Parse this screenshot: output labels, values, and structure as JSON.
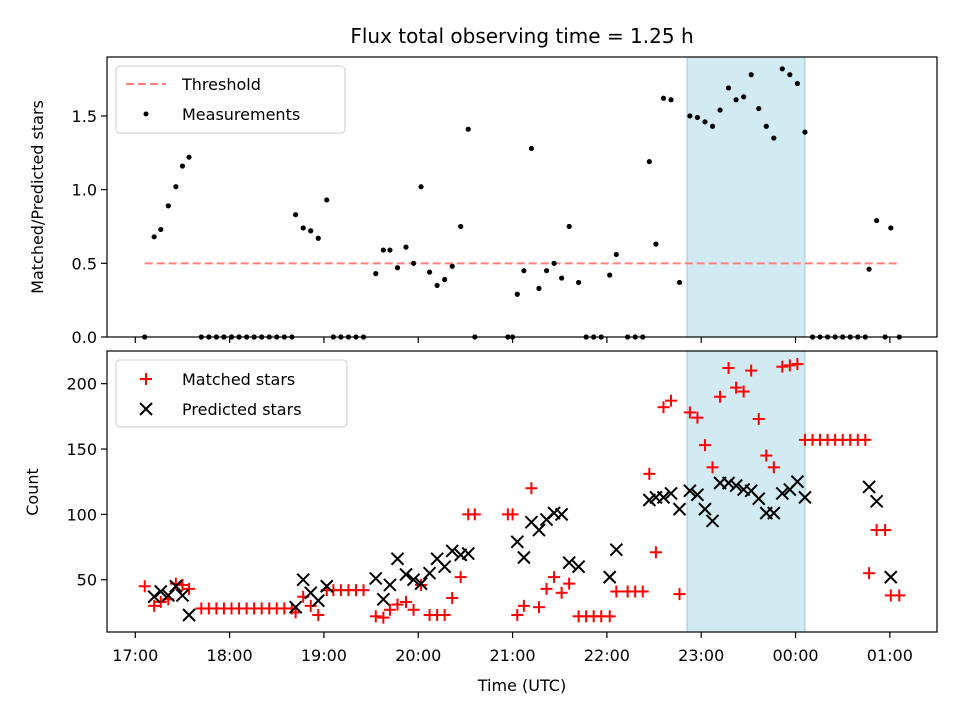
{
  "chart_data": [
    {
      "type": "scatter",
      "panel": "top",
      "title": "Flux total observing time = 1.25 h",
      "xlabel": "",
      "ylabel": "Matched/Predicted stars",
      "ylim": [
        0,
        1.9
      ],
      "yticks": [
        "0.0",
        "0.5",
        "1.0",
        "1.5"
      ],
      "ytick_values": [
        0,
        0.5,
        1.0,
        1.5
      ],
      "threshold": {
        "name": "Threshold",
        "y": 0.5,
        "x_start": 17.1,
        "x_end": 25.1,
        "color": "#ff7f7f"
      },
      "highlight": {
        "x_start": 22.85,
        "x_end": 24.1,
        "color": "#add8e6"
      },
      "legend": {
        "placement": "upper left",
        "entries": [
          "Threshold",
          "Measurements"
        ]
      },
      "series": [
        {
          "name": "Measurements",
          "color": "#000000",
          "points": [
            [
              17.1,
              0
            ],
            [
              17.2,
              0.68
            ],
            [
              17.27,
              0.73
            ],
            [
              17.35,
              0.89
            ],
            [
              17.43,
              1.02
            ],
            [
              17.5,
              1.16
            ],
            [
              17.57,
              1.22
            ],
            [
              17.7,
              0
            ],
            [
              17.78,
              0
            ],
            [
              17.86,
              0
            ],
            [
              17.94,
              0
            ],
            [
              18.02,
              0
            ],
            [
              18.1,
              0
            ],
            [
              18.18,
              0
            ],
            [
              18.26,
              0
            ],
            [
              18.34,
              0
            ],
            [
              18.42,
              0
            ],
            [
              18.5,
              0
            ],
            [
              18.58,
              0
            ],
            [
              18.66,
              0
            ],
            [
              18.7,
              0.83
            ],
            [
              18.78,
              0.74
            ],
            [
              18.86,
              0.72
            ],
            [
              18.94,
              0.67
            ],
            [
              19.03,
              0.93
            ],
            [
              19.1,
              0
            ],
            [
              19.18,
              0
            ],
            [
              19.26,
              0
            ],
            [
              19.34,
              0
            ],
            [
              19.42,
              0
            ],
            [
              19.55,
              0.43
            ],
            [
              19.63,
              0.59
            ],
            [
              19.7,
              0.59
            ],
            [
              19.78,
              0.47
            ],
            [
              19.87,
              0.61
            ],
            [
              19.95,
              0.5
            ],
            [
              20.03,
              1.02
            ],
            [
              20.12,
              0.44
            ],
            [
              20.2,
              0.35
            ],
            [
              20.28,
              0.39
            ],
            [
              20.36,
              0.48
            ],
            [
              20.45,
              0.75
            ],
            [
              20.53,
              1.41
            ],
            [
              20.6,
              0
            ],
            [
              20.95,
              0
            ],
            [
              21.0,
              0
            ],
            [
              21.05,
              0.29
            ],
            [
              21.12,
              0.45
            ],
            [
              21.2,
              1.28
            ],
            [
              21.28,
              0.33
            ],
            [
              21.36,
              0.45
            ],
            [
              21.44,
              0.5
            ],
            [
              21.52,
              0.4
            ],
            [
              21.6,
              0.75
            ],
            [
              21.7,
              0.37
            ],
            [
              21.78,
              0
            ],
            [
              21.86,
              0
            ],
            [
              21.94,
              0
            ],
            [
              22.03,
              0.42
            ],
            [
              22.1,
              0.56
            ],
            [
              22.22,
              0
            ],
            [
              22.3,
              0
            ],
            [
              22.38,
              0
            ],
            [
              22.45,
              1.19
            ],
            [
              22.52,
              0.63
            ],
            [
              22.6,
              1.62
            ],
            [
              22.68,
              1.61
            ],
            [
              22.77,
              0.37
            ],
            [
              22.88,
              1.5
            ],
            [
              22.96,
              1.49
            ],
            [
              23.04,
              1.46
            ],
            [
              23.12,
              1.43
            ],
            [
              23.2,
              1.54
            ],
            [
              23.29,
              1.69
            ],
            [
              23.37,
              1.61
            ],
            [
              23.45,
              1.63
            ],
            [
              23.53,
              1.78
            ],
            [
              23.61,
              1.55
            ],
            [
              23.69,
              1.43
            ],
            [
              23.77,
              1.35
            ],
            [
              23.86,
              1.82
            ],
            [
              23.94,
              1.78
            ],
            [
              24.02,
              1.72
            ],
            [
              24.1,
              1.39
            ],
            [
              24.18,
              0
            ],
            [
              24.26,
              0
            ],
            [
              24.34,
              0
            ],
            [
              24.42,
              0
            ],
            [
              24.5,
              0
            ],
            [
              24.58,
              0
            ],
            [
              24.66,
              0
            ],
            [
              24.74,
              0
            ],
            [
              24.78,
              0.46
            ],
            [
              24.86,
              0.79
            ],
            [
              24.95,
              0
            ],
            [
              25.01,
              0.74
            ],
            [
              25.1,
              0
            ]
          ]
        }
      ]
    },
    {
      "type": "scatter",
      "panel": "bottom",
      "title": "",
      "xlabel": "Time (UTC)",
      "ylabel": "Count",
      "ylim": [
        10,
        225
      ],
      "yticks": [
        "50",
        "100",
        "150",
        "200"
      ],
      "ytick_values": [
        50,
        100,
        150,
        200
      ],
      "xlim": [
        16.7,
        25.5
      ],
      "xtick_values": [
        17,
        18,
        19,
        20,
        21,
        22,
        23,
        24,
        25
      ],
      "xticks": [
        "17:00",
        "18:00",
        "19:00",
        "20:00",
        "21:00",
        "22:00",
        "23:00",
        "00:00",
        "01:00"
      ],
      "highlight": {
        "x_start": 22.85,
        "x_end": 24.1,
        "color": "#add8e6"
      },
      "legend": {
        "placement": "upper left",
        "entries": [
          "Matched stars",
          "Predicted stars"
        ]
      },
      "series": [
        {
          "name": "Matched stars",
          "marker": "plus",
          "color": "#ff0000",
          "points": [
            [
              17.1,
              45
            ],
            [
              17.2,
              30
            ],
            [
              17.27,
              33
            ],
            [
              17.35,
              35
            ],
            [
              17.43,
              47
            ],
            [
              17.5,
              46
            ],
            [
              17.57,
              43
            ],
            [
              17.7,
              28
            ],
            [
              17.78,
              28
            ],
            [
              17.86,
              28
            ],
            [
              17.94,
              28
            ],
            [
              18.02,
              28
            ],
            [
              18.1,
              28
            ],
            [
              18.18,
              28
            ],
            [
              18.26,
              28
            ],
            [
              18.34,
              28
            ],
            [
              18.42,
              28
            ],
            [
              18.5,
              28
            ],
            [
              18.58,
              28
            ],
            [
              18.66,
              28
            ],
            [
              18.7,
              25
            ],
            [
              18.78,
              37
            ],
            [
              18.86,
              30
            ],
            [
              18.94,
              23
            ],
            [
              19.03,
              42
            ],
            [
              19.1,
              42
            ],
            [
              19.18,
              42
            ],
            [
              19.26,
              42
            ],
            [
              19.34,
              42
            ],
            [
              19.42,
              42
            ],
            [
              19.55,
              22
            ],
            [
              19.63,
              21
            ],
            [
              19.7,
              27
            ],
            [
              19.78,
              31
            ],
            [
              19.87,
              33
            ],
            [
              19.95,
              27
            ],
            [
              20.03,
              46
            ],
            [
              20.12,
              23
            ],
            [
              20.2,
              23
            ],
            [
              20.28,
              23
            ],
            [
              20.36,
              36
            ],
            [
              20.45,
              52
            ],
            [
              20.53,
              100
            ],
            [
              20.6,
              100
            ],
            [
              20.95,
              100
            ],
            [
              21.0,
              100
            ],
            [
              21.05,
              23
            ],
            [
              21.12,
              30
            ],
            [
              21.2,
              120
            ],
            [
              21.28,
              29
            ],
            [
              21.36,
              43
            ],
            [
              21.44,
              52
            ],
            [
              21.52,
              40
            ],
            [
              21.6,
              47
            ],
            [
              21.7,
              22
            ],
            [
              21.78,
              22
            ],
            [
              21.86,
              22
            ],
            [
              21.94,
              22
            ],
            [
              22.03,
              22
            ],
            [
              22.1,
              41
            ],
            [
              22.22,
              41
            ],
            [
              22.3,
              41
            ],
            [
              22.38,
              41
            ],
            [
              22.45,
              131
            ],
            [
              22.52,
              71
            ],
            [
              22.6,
              182
            ],
            [
              22.68,
              187
            ],
            [
              22.77,
              39
            ],
            [
              22.88,
              178
            ],
            [
              22.96,
              174
            ],
            [
              23.04,
              153
            ],
            [
              23.12,
              136
            ],
            [
              23.2,
              190
            ],
            [
              23.29,
              212
            ],
            [
              23.37,
              197
            ],
            [
              23.45,
              194
            ],
            [
              23.53,
              210
            ],
            [
              23.61,
              173
            ],
            [
              23.69,
              145
            ],
            [
              23.77,
              136
            ],
            [
              23.86,
              213
            ],
            [
              23.94,
              214
            ],
            [
              24.02,
              215
            ],
            [
              24.1,
              157
            ],
            [
              24.18,
              157
            ],
            [
              24.26,
              157
            ],
            [
              24.34,
              157
            ],
            [
              24.42,
              157
            ],
            [
              24.5,
              157
            ],
            [
              24.58,
              157
            ],
            [
              24.66,
              157
            ],
            [
              24.74,
              157
            ],
            [
              24.78,
              55
            ],
            [
              24.86,
              88
            ],
            [
              24.95,
              88
            ],
            [
              25.01,
              38
            ],
            [
              25.1,
              38
            ]
          ]
        },
        {
          "name": "Predicted stars",
          "marker": "x",
          "color": "#000000",
          "points": [
            [
              17.2,
              37
            ],
            [
              17.27,
              41
            ],
            [
              17.35,
              38
            ],
            [
              17.43,
              45
            ],
            [
              17.5,
              38
            ],
            [
              17.57,
              23
            ],
            [
              18.7,
              29
            ],
            [
              18.78,
              50
            ],
            [
              18.86,
              40
            ],
            [
              18.94,
              34
            ],
            [
              19.03,
              45
            ],
            [
              19.55,
              51
            ],
            [
              19.63,
              35
            ],
            [
              19.7,
              46
            ],
            [
              19.78,
              66
            ],
            [
              19.87,
              54
            ],
            [
              19.95,
              50
            ],
            [
              20.03,
              47
            ],
            [
              20.12,
              55
            ],
            [
              20.2,
              66
            ],
            [
              20.28,
              60
            ],
            [
              20.36,
              72
            ],
            [
              20.45,
              69
            ],
            [
              20.53,
              70
            ],
            [
              21.05,
              79
            ],
            [
              21.12,
              67
            ],
            [
              21.2,
              94
            ],
            [
              21.28,
              88
            ],
            [
              21.36,
              96
            ],
            [
              21.44,
              101
            ],
            [
              21.52,
              100
            ],
            [
              21.6,
              63
            ],
            [
              21.7,
              60
            ],
            [
              22.03,
              52
            ],
            [
              22.1,
              73
            ],
            [
              22.45,
              111
            ],
            [
              22.52,
              113
            ],
            [
              22.6,
              113
            ],
            [
              22.68,
              116
            ],
            [
              22.77,
              104
            ],
            [
              22.88,
              118
            ],
            [
              22.96,
              115
            ],
            [
              23.04,
              104
            ],
            [
              23.12,
              95
            ],
            [
              23.2,
              124
            ],
            [
              23.29,
              124
            ],
            [
              23.37,
              122
            ],
            [
              23.45,
              119
            ],
            [
              23.53,
              118
            ],
            [
              23.61,
              112
            ],
            [
              23.69,
              101
            ],
            [
              23.77,
              101
            ],
            [
              23.86,
              116
            ],
            [
              23.94,
              119
            ],
            [
              24.02,
              125
            ],
            [
              24.1,
              113
            ],
            [
              24.78,
              121
            ],
            [
              24.86,
              110
            ],
            [
              25.01,
              52
            ]
          ]
        }
      ]
    }
  ]
}
